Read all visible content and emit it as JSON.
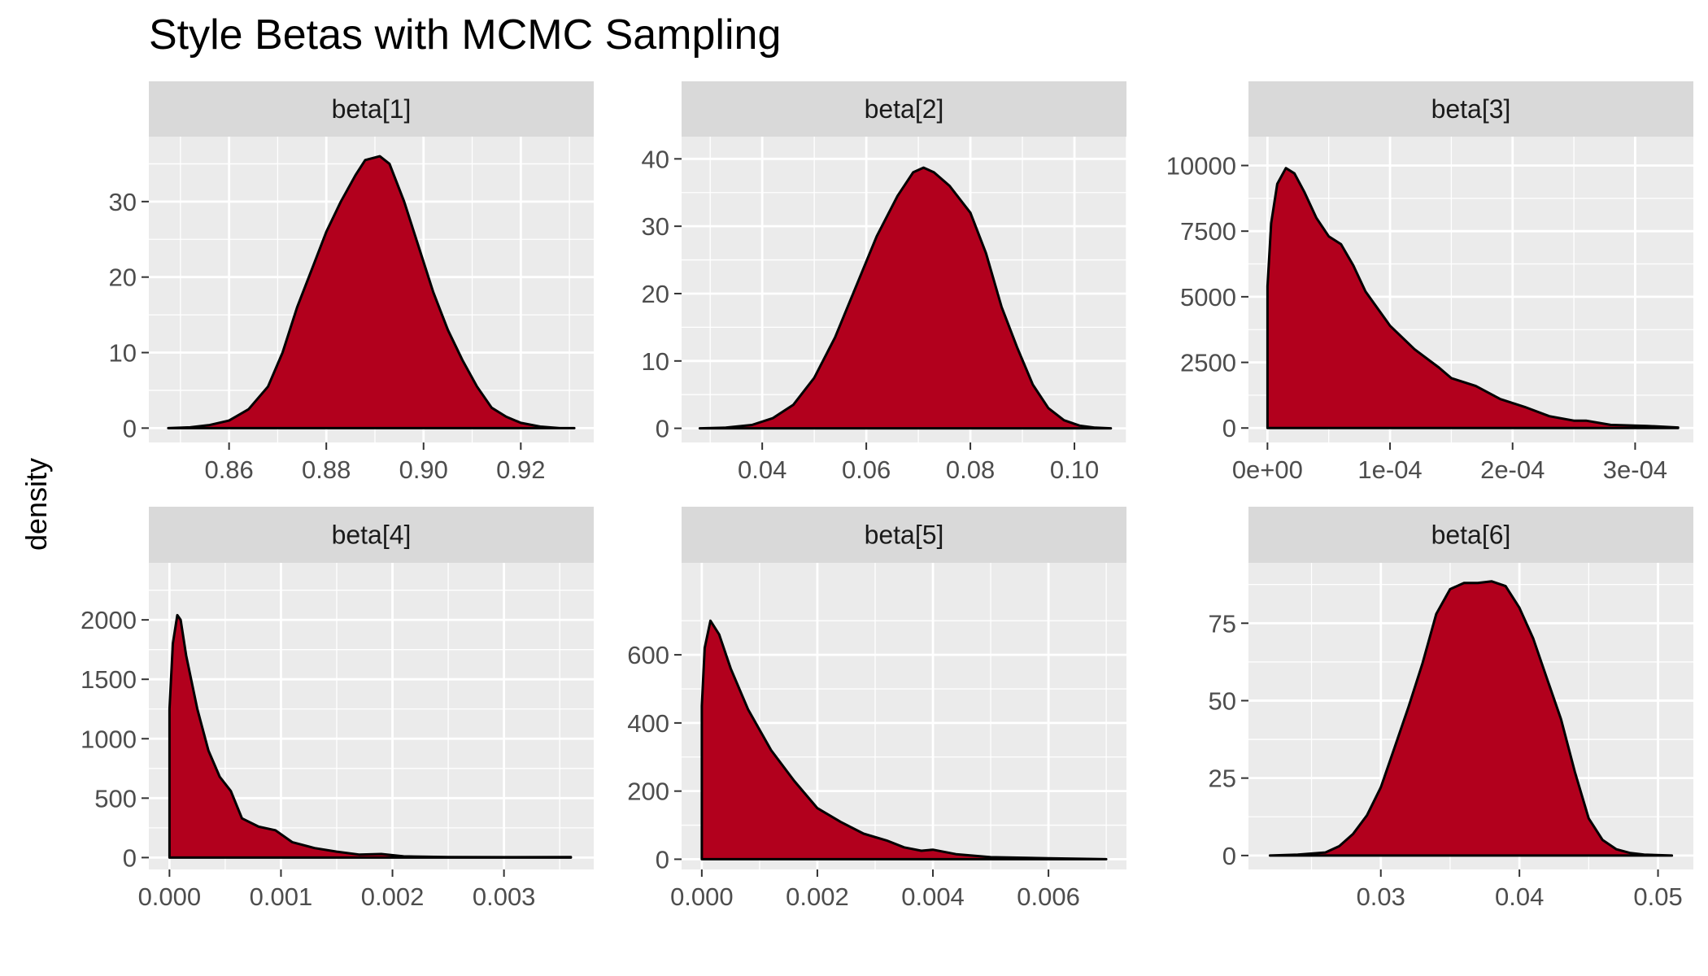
{
  "colors": {
    "fill": "#B2001D",
    "outline": "#000000",
    "panel_bg": "#EBEBEB",
    "strip_bg": "#D9D9D9",
    "grid": "#FFFFFF",
    "tick_text": "#4D4D4D"
  },
  "chart_data": {
    "type": "area",
    "subtype": "faceted density plot",
    "title": "Style Betas with MCMC Sampling",
    "xlabel": "",
    "ylabel": "density",
    "grid": true,
    "legend": "none",
    "facets": [
      {
        "name": "beta[1]",
        "xlim": [
          0.8435,
          0.935
        ],
        "ylim": [
          -1.9,
          38.6
        ],
        "xticks": [
          0.86,
          0.88,
          0.9,
          0.92
        ],
        "xtick_labels": [
          "0.86",
          "0.88",
          "0.90",
          "0.92"
        ],
        "yticks": [
          0,
          10,
          20,
          30
        ],
        "ytick_labels": [
          "0",
          "10",
          "20",
          "30"
        ],
        "points": [
          [
            0.8475,
            0
          ],
          [
            0.852,
            0.1
          ],
          [
            0.856,
            0.4
          ],
          [
            0.86,
            1
          ],
          [
            0.864,
            2.5
          ],
          [
            0.868,
            5.5
          ],
          [
            0.871,
            10
          ],
          [
            0.874,
            16
          ],
          [
            0.877,
            21
          ],
          [
            0.88,
            26
          ],
          [
            0.883,
            30
          ],
          [
            0.886,
            33.5
          ],
          [
            0.888,
            35.5
          ],
          [
            0.891,
            36
          ],
          [
            0.893,
            35
          ],
          [
            0.896,
            30
          ],
          [
            0.899,
            24
          ],
          [
            0.902,
            18
          ],
          [
            0.905,
            13
          ],
          [
            0.908,
            9
          ],
          [
            0.911,
            5.5
          ],
          [
            0.914,
            2.7
          ],
          [
            0.917,
            1.5
          ],
          [
            0.92,
            0.7
          ],
          [
            0.924,
            0.2
          ],
          [
            0.928,
            0
          ],
          [
            0.931,
            0
          ]
        ]
      },
      {
        "name": "beta[2]",
        "xlim": [
          0.0245,
          0.11
        ],
        "ylim": [
          -2.1,
          43.3
        ],
        "xticks": [
          0.04,
          0.06,
          0.08,
          0.1
        ],
        "xtick_labels": [
          "0.04",
          "0.06",
          "0.08",
          "0.10"
        ],
        "yticks": [
          0,
          10,
          20,
          30,
          40
        ],
        "ytick_labels": [
          "0",
          "10",
          "20",
          "30",
          "40"
        ],
        "points": [
          [
            0.028,
            0
          ],
          [
            0.033,
            0.1
          ],
          [
            0.038,
            0.5
          ],
          [
            0.042,
            1.5
          ],
          [
            0.046,
            3.5
          ],
          [
            0.05,
            7.5
          ],
          [
            0.054,
            13.5
          ],
          [
            0.058,
            21
          ],
          [
            0.062,
            28.5
          ],
          [
            0.066,
            34.5
          ],
          [
            0.069,
            38
          ],
          [
            0.071,
            38.7
          ],
          [
            0.073,
            38
          ],
          [
            0.076,
            36
          ],
          [
            0.08,
            32
          ],
          [
            0.083,
            26
          ],
          [
            0.086,
            18
          ],
          [
            0.089,
            12
          ],
          [
            0.092,
            6.5
          ],
          [
            0.095,
            3
          ],
          [
            0.098,
            1.2
          ],
          [
            0.101,
            0.4
          ],
          [
            0.104,
            0.1
          ],
          [
            0.107,
            0
          ]
        ]
      },
      {
        "name": "beta[3]",
        "xlim": [
          -1.55e-05,
          0.0003475
        ],
        "ylim": [
          -550,
          11100
        ],
        "xticks": [
          0,
          0.0001,
          0.0002,
          0.0003
        ],
        "xtick_labels": [
          "0e+00",
          "1e-04",
          "2e-04",
          "3e-04"
        ],
        "yticks": [
          0,
          2500,
          5000,
          7500,
          10000
        ],
        "ytick_labels": [
          "0",
          "2500",
          "5000",
          "7500",
          "10000"
        ],
        "points": [
          [
            0,
            0
          ],
          [
            0,
            5400
          ],
          [
            3e-06,
            7800
          ],
          [
            8e-06,
            9300
          ],
          [
            1.5e-05,
            9900
          ],
          [
            2.2e-05,
            9700
          ],
          [
            3e-05,
            9000
          ],
          [
            4e-05,
            8000
          ],
          [
            5e-05,
            7300
          ],
          [
            6e-05,
            7000
          ],
          [
            7e-05,
            6200
          ],
          [
            8e-05,
            5200
          ],
          [
            0.0001,
            3900
          ],
          [
            0.00012,
            3000
          ],
          [
            0.00014,
            2300
          ],
          [
            0.00015,
            1900
          ],
          [
            0.00017,
            1600
          ],
          [
            0.00019,
            1100
          ],
          [
            0.00021,
            800
          ],
          [
            0.00023,
            450
          ],
          [
            0.00025,
            280
          ],
          [
            0.00026,
            280
          ],
          [
            0.00028,
            120
          ],
          [
            0.00031,
            80
          ],
          [
            0.000335,
            20
          ]
        ]
      },
      {
        "name": "beta[4]",
        "xlim": [
          -0.000185,
          0.003805
        ],
        "ylim": [
          -100,
          2480
        ],
        "xticks": [
          0,
          0.001,
          0.002,
          0.003
        ],
        "xtick_labels": [
          "0.000",
          "0.001",
          "0.002",
          "0.003"
        ],
        "yticks": [
          0,
          500,
          1000,
          1500,
          2000
        ],
        "ytick_labels": [
          "0",
          "500",
          "1000",
          "1500",
          "2000"
        ],
        "points": [
          [
            0,
            0
          ],
          [
            0,
            1250
          ],
          [
            3e-05,
            1800
          ],
          [
            7e-05,
            2040
          ],
          [
            0.0001,
            2000
          ],
          [
            0.00015,
            1700
          ],
          [
            0.00025,
            1250
          ],
          [
            0.00035,
            900
          ],
          [
            0.00045,
            680
          ],
          [
            0.00055,
            560
          ],
          [
            0.00065,
            330
          ],
          [
            0.0008,
            260
          ],
          [
            0.00095,
            230
          ],
          [
            0.0011,
            130
          ],
          [
            0.0013,
            80
          ],
          [
            0.0015,
            50
          ],
          [
            0.0017,
            25
          ],
          [
            0.0019,
            30
          ],
          [
            0.0021,
            10
          ],
          [
            0.0025,
            5
          ],
          [
            0.003,
            3
          ],
          [
            0.0036,
            5
          ]
        ]
      },
      {
        "name": "beta[5]",
        "xlim": [
          -0.00035,
          0.00735
        ],
        "ylim": [
          -30,
          870
        ],
        "xticks": [
          0,
          0.002,
          0.004,
          0.006
        ],
        "xtick_labels": [
          "0.000",
          "0.002",
          "0.004",
          "0.006"
        ],
        "yticks": [
          0,
          200,
          400,
          600
        ],
        "ytick_labels": [
          "0",
          "200",
          "400",
          "600"
        ],
        "points": [
          [
            0,
            0
          ],
          [
            0,
            450
          ],
          [
            5e-05,
            620
          ],
          [
            0.00015,
            700
          ],
          [
            0.0003,
            660
          ],
          [
            0.0005,
            560
          ],
          [
            0.0008,
            440
          ],
          [
            0.0012,
            320
          ],
          [
            0.0016,
            230
          ],
          [
            0.002,
            150
          ],
          [
            0.0024,
            110
          ],
          [
            0.0028,
            75
          ],
          [
            0.0032,
            55
          ],
          [
            0.0035,
            35
          ],
          [
            0.0038,
            25
          ],
          [
            0.004,
            28
          ],
          [
            0.0044,
            15
          ],
          [
            0.005,
            6
          ],
          [
            0.006,
            3
          ],
          [
            0.007,
            0
          ]
        ]
      },
      {
        "name": "beta[6]",
        "xlim": [
          0.02045,
          0.05255
        ],
        "ylim": [
          -4.5,
          94.5
        ],
        "xticks": [
          0.03,
          0.04,
          0.05
        ],
        "xtick_labels": [
          "0.03",
          "0.04",
          "0.05"
        ],
        "yticks": [
          0,
          25,
          50,
          75
        ],
        "ytick_labels": [
          "0",
          "25",
          "50",
          "75"
        ],
        "points": [
          [
            0.022,
            0
          ],
          [
            0.024,
            0.3
          ],
          [
            0.026,
            1
          ],
          [
            0.027,
            3
          ],
          [
            0.028,
            7
          ],
          [
            0.029,
            13
          ],
          [
            0.03,
            22
          ],
          [
            0.031,
            35
          ],
          [
            0.032,
            48
          ],
          [
            0.033,
            62
          ],
          [
            0.034,
            78
          ],
          [
            0.035,
            86
          ],
          [
            0.036,
            88
          ],
          [
            0.037,
            88
          ],
          [
            0.038,
            88.5
          ],
          [
            0.039,
            87
          ],
          [
            0.04,
            80
          ],
          [
            0.041,
            70
          ],
          [
            0.042,
            57
          ],
          [
            0.043,
            44
          ],
          [
            0.044,
            27
          ],
          [
            0.045,
            12
          ],
          [
            0.046,
            5
          ],
          [
            0.047,
            2
          ],
          [
            0.048,
            0.8
          ],
          [
            0.049,
            0.3
          ],
          [
            0.051,
            0
          ]
        ]
      }
    ]
  }
}
